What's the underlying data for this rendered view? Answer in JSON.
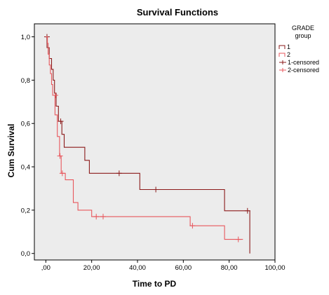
{
  "chart_data": {
    "type": "line",
    "title": "Survival Functions",
    "xlabel": "Time to PD",
    "ylabel": "Cum Survival",
    "xlim": [
      -5,
      100
    ],
    "ylim": [
      -0.03,
      1.06
    ],
    "xticks": [
      0,
      20,
      40,
      60,
      80,
      100
    ],
    "xtick_labels": [
      ",00",
      "20,00",
      "40,00",
      "60,00",
      "80,00",
      "100,00"
    ],
    "yticks": [
      0,
      0.2,
      0.4,
      0.6,
      0.8,
      1.0
    ],
    "ytick_labels": [
      "0,0",
      "0,2",
      "0,4",
      "0,6",
      "0,8",
      "1,0"
    ],
    "grid": false,
    "plot_background": "#ececec",
    "legend": {
      "title_line1": "GRADE",
      "title_line2": "group",
      "placement": "right",
      "entries": [
        "1",
        "2",
        "1-censored",
        "2-censored"
      ]
    },
    "series": [
      {
        "name": "1",
        "color": "#8b1a1a",
        "steps": [
          [
            0,
            1.0
          ],
          [
            0.5,
            0.95
          ],
          [
            1.5,
            0.9
          ],
          [
            2.5,
            0.85
          ],
          [
            3.2,
            0.8
          ],
          [
            3.8,
            0.74
          ],
          [
            4.5,
            0.68
          ],
          [
            5.5,
            0.61
          ],
          [
            7.0,
            0.55
          ],
          [
            8.0,
            0.49
          ],
          [
            17.0,
            0.43
          ],
          [
            19.0,
            0.37
          ],
          [
            41.0,
            0.295
          ],
          [
            78.0,
            0.197
          ],
          [
            89.0,
            0.0
          ]
        ],
        "end_x": 89,
        "censored": [
          [
            0.5,
            1.0
          ],
          [
            6.5,
            0.61
          ],
          [
            32.0,
            0.37
          ],
          [
            48.0,
            0.295
          ],
          [
            88.0,
            0.197
          ]
        ]
      },
      {
        "name": "2",
        "color": "#e8575d",
        "steps": [
          [
            0,
            1.0
          ],
          [
            0.7,
            0.97
          ],
          [
            1.0,
            0.92
          ],
          [
            1.5,
            0.87
          ],
          [
            2.0,
            0.83
          ],
          [
            2.5,
            0.78
          ],
          [
            3.0,
            0.73
          ],
          [
            4.0,
            0.64
          ],
          [
            5.0,
            0.54
          ],
          [
            6.0,
            0.45
          ],
          [
            6.7,
            0.37
          ],
          [
            8.5,
            0.34
          ],
          [
            12.0,
            0.235
          ],
          [
            14.0,
            0.2
          ],
          [
            20.0,
            0.17
          ],
          [
            63.0,
            0.128
          ],
          [
            78.0,
            0.065
          ],
          [
            86.0,
            0.065
          ]
        ],
        "end_x": 86,
        "censored": [
          [
            4.2,
            0.73
          ],
          [
            6.2,
            0.45
          ],
          [
            7.2,
            0.37
          ],
          [
            22.0,
            0.17
          ],
          [
            25.0,
            0.17
          ],
          [
            64.0,
            0.128
          ],
          [
            84.0,
            0.065
          ]
        ]
      }
    ]
  }
}
